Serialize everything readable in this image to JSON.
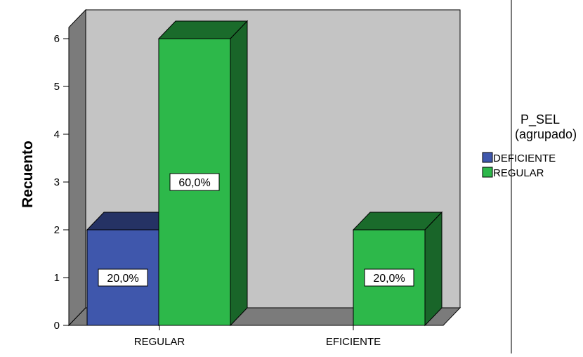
{
  "chart_data": {
    "type": "bar",
    "style": "3d-clustered",
    "categories": [
      "REGULAR",
      "EFICIENTE"
    ],
    "ylabel": "Recuento",
    "xlabel": "",
    "ylim": [
      0,
      6
    ],
    "yticks": [
      0,
      1,
      2,
      3,
      4,
      5,
      6
    ],
    "legend": {
      "title_line1": "P_SEL",
      "title_line2": "(agrupado)",
      "placement": "right"
    },
    "series": [
      {
        "name": "DEFICIENTE",
        "color": "#3f57ac",
        "values": [
          2,
          null
        ],
        "labels": [
          "20,0%",
          null
        ]
      },
      {
        "name": "REGULAR",
        "color": "#2db84a",
        "values": [
          6,
          2
        ],
        "labels": [
          "60,0%",
          "20,0%"
        ]
      }
    ],
    "wall_color": "#c4c4c4",
    "grid": false
  }
}
